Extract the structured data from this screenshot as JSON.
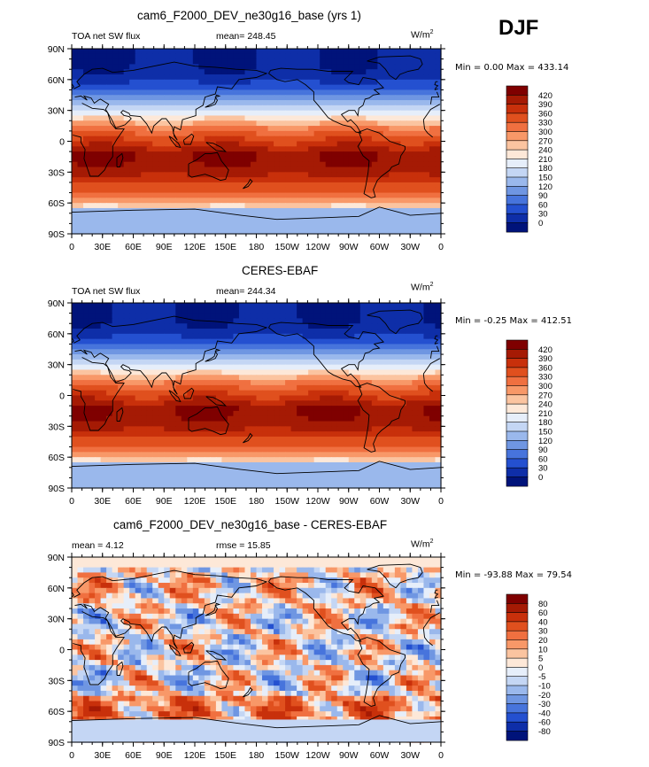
{
  "header": {
    "season": "DJF"
  },
  "axes": {
    "lat_labels": [
      "90N",
      "60N",
      "30N",
      "0",
      "30S",
      "60S",
      "90S"
    ],
    "lon_labels": [
      "0",
      "30E",
      "60E",
      "90E",
      "120E",
      "150E",
      "180",
      "150W",
      "120W",
      "90W",
      "60W",
      "30W",
      "0"
    ]
  },
  "panels": [
    {
      "title": "cam6_F2000_DEV_ne30g16_base (yrs 1)",
      "left_label": "TOA net SW flux",
      "center_label": "mean=  248.45",
      "units": "W/m",
      "units_exp": "2",
      "minmax": "Min =   0.00 Max = 433.14",
      "colorbar_labels": [
        "420",
        "390",
        "360",
        "330",
        "300",
        "270",
        "240",
        "210",
        "180",
        "150",
        "120",
        "90",
        "60",
        "30",
        "0"
      ],
      "colors": [
        "#7f0000",
        "#a51a04",
        "#c8300b",
        "#e0501e",
        "#f07040",
        "#f89868",
        "#fbc4a0",
        "#fde8d8",
        "#e6eefa",
        "#c4d6f4",
        "#9ab8ec",
        "#6f96e2",
        "#4774dc",
        "#2450d0",
        "#0e2ea8",
        "#00137a"
      ]
    },
    {
      "title": "CERES-EBAF",
      "left_label": "TOA net SW flux",
      "center_label": "mean=  244.34",
      "units": "W/m",
      "units_exp": "2",
      "minmax": "Min =  -0.25 Max = 412.51",
      "colorbar_labels": [
        "420",
        "390",
        "360",
        "330",
        "300",
        "270",
        "240",
        "210",
        "180",
        "150",
        "120",
        "90",
        "60",
        "30",
        "0"
      ],
      "colors": [
        "#7f0000",
        "#a51a04",
        "#c8300b",
        "#e0501e",
        "#f07040",
        "#f89868",
        "#fbc4a0",
        "#fde8d8",
        "#e6eefa",
        "#c4d6f4",
        "#9ab8ec",
        "#6f96e2",
        "#4774dc",
        "#2450d0",
        "#0e2ea8",
        "#00137a"
      ]
    },
    {
      "title": "cam6_F2000_DEV_ne30g16_base - CERES-EBAF",
      "left_label": "mean =    4.12",
      "center_label": "rmse =   15.85",
      "units": "W/m",
      "units_exp": "2",
      "minmax": "Min = -93.88 Max =  79.54",
      "colorbar_labels": [
        "80",
        "60",
        "40",
        "30",
        "20",
        "10",
        "5",
        "0",
        "-5",
        "-10",
        "-20",
        "-30",
        "-40",
        "-60",
        "-80"
      ],
      "colors": [
        "#7f0000",
        "#a51a04",
        "#c8300b",
        "#e0501e",
        "#f07040",
        "#f89868",
        "#fbc4a0",
        "#fde8d8",
        "#e6eefa",
        "#c4d6f4",
        "#9ab8ec",
        "#6f96e2",
        "#4774dc",
        "#2450d0",
        "#0e2ea8",
        "#00137a"
      ]
    }
  ]
}
